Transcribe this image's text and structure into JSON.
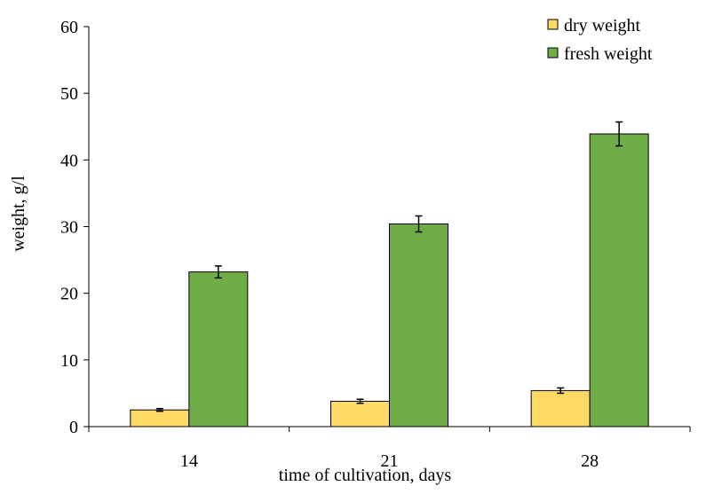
{
  "chart_data": {
    "type": "bar",
    "xlabel": "time of cultivation, days",
    "ylabel": "weight, g/l",
    "ylim": [
      0,
      60
    ],
    "yticks": [
      "0",
      "10",
      "20",
      "30",
      "40",
      "50",
      "60"
    ],
    "categories": [
      "14",
      "21",
      "28"
    ],
    "grid": false,
    "legend_position": "top-right",
    "series": [
      {
        "name": "dry weight",
        "color": "#FFD966",
        "values": [
          2.5,
          3.8,
          5.4
        ],
        "errors": [
          0.2,
          0.3,
          0.4
        ]
      },
      {
        "name": "fresh weight",
        "color": "#70AD47",
        "values": [
          23.2,
          30.4,
          43.9
        ],
        "errors": [
          0.9,
          1.2,
          1.8
        ]
      }
    ]
  }
}
